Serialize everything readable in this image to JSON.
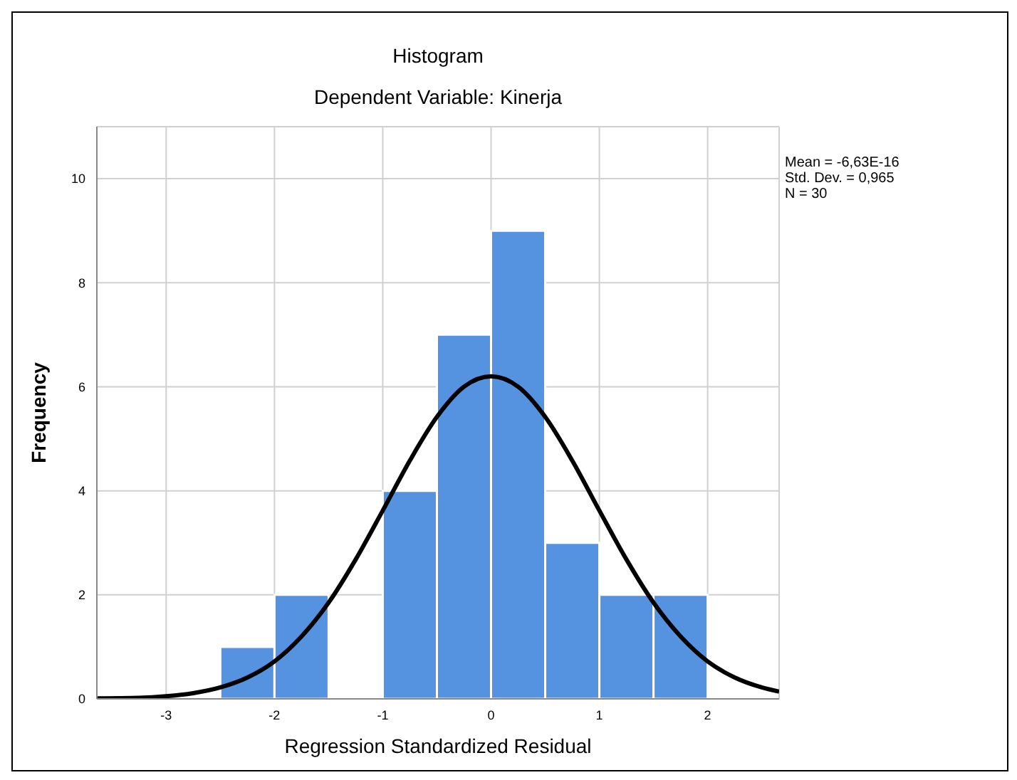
{
  "chart_data": {
    "type": "histogram",
    "title": "Histogram",
    "subtitle": "Dependent Variable: Kinerja",
    "xlabel": "Regression Standardized Residual",
    "ylabel": "Frequency",
    "annotations": [
      "Mean = -6,63E-16",
      "Std. Dev. = 0,965",
      "N = 30"
    ],
    "bins": [
      -2.5,
      -2,
      -1.5,
      -1,
      -0.5,
      0,
      0.5,
      1,
      1.5,
      2
    ],
    "values": [
      1,
      2,
      0,
      4,
      7,
      9,
      3,
      2,
      2
    ],
    "color": "#5593e0",
    "series": [
      {
        "type": "line",
        "color": "#000000",
        "x": [
          -3.64,
          -3.25,
          -3,
          -2.75,
          -2.5,
          -2.25,
          -2,
          -1.75,
          -1.5,
          -1.25,
          -1,
          -0.75,
          -0.5,
          -0.25,
          0,
          0.25,
          0.5,
          0.75,
          1,
          1.25,
          1.5,
          1.75,
          2,
          2.25,
          2.5,
          2.66
        ],
        "values": [
          0.01,
          0.02,
          0.05,
          0.11,
          0.22,
          0.41,
          0.72,
          1.2,
          1.85,
          2.68,
          3.62,
          4.58,
          5.42,
          6.0,
          6.2,
          6.0,
          5.42,
          4.58,
          3.62,
          2.68,
          1.85,
          1.2,
          0.72,
          0.41,
          0.22,
          0.14
        ]
      }
    ],
    "xlim": [
      -3.64,
      2.66
    ],
    "xticks": [
      -3,
      -2,
      -1,
      0,
      1,
      2
    ],
    "ylim": [
      0,
      11
    ],
    "yticks": [
      0,
      2,
      4,
      6,
      8,
      10
    ],
    "grid": true,
    "legend": false
  }
}
